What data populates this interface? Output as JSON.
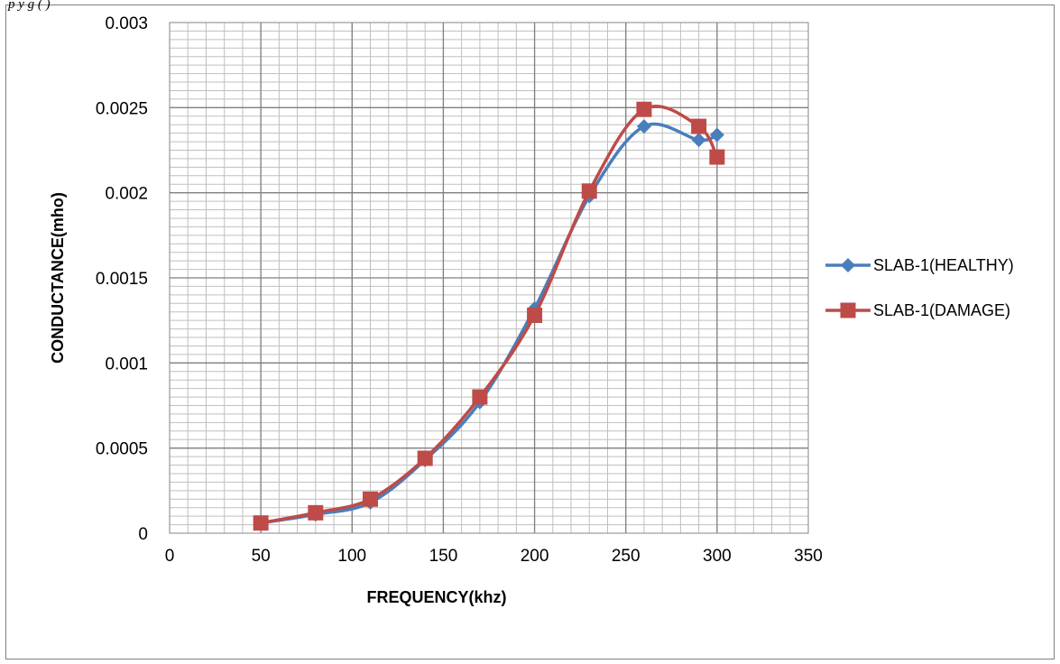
{
  "caption": "p                                              y                         g      (          )",
  "chart_data": {
    "type": "line",
    "title": "",
    "xlabel": "FREQUENCY(khz)",
    "ylabel": "CONDUCTANCE(mho)",
    "xlim": [
      0,
      350
    ],
    "ylim": [
      0,
      0.003
    ],
    "x_ticks": [
      "0",
      "50",
      "100",
      "150",
      "200",
      "250",
      "300",
      "350"
    ],
    "y_ticks": [
      "0",
      "0.0005",
      "0.001",
      "0.0015",
      "0.002",
      "0.0025",
      "0.003"
    ],
    "grid": true,
    "legend_position": "right",
    "series": [
      {
        "name": "SLAB-1(HEALTHY)",
        "color": "#4a7ebb",
        "marker": "diamond",
        "x": [
          50,
          80,
          110,
          140,
          170,
          200,
          230,
          260,
          290,
          300
        ],
        "y": [
          6e-05,
          0.00011,
          0.00018,
          0.00043,
          0.00077,
          0.00132,
          0.00198,
          0.00239,
          0.00231,
          0.00234
        ]
      },
      {
        "name": "SLAB-1(DAMAGE)",
        "color": "#be4b48",
        "marker": "square",
        "x": [
          50,
          80,
          110,
          140,
          170,
          200,
          230,
          260,
          290,
          300
        ],
        "y": [
          6e-05,
          0.00012,
          0.0002,
          0.00044,
          0.0008,
          0.00128,
          0.00201,
          0.00249,
          0.00239,
          0.00221
        ]
      }
    ]
  }
}
